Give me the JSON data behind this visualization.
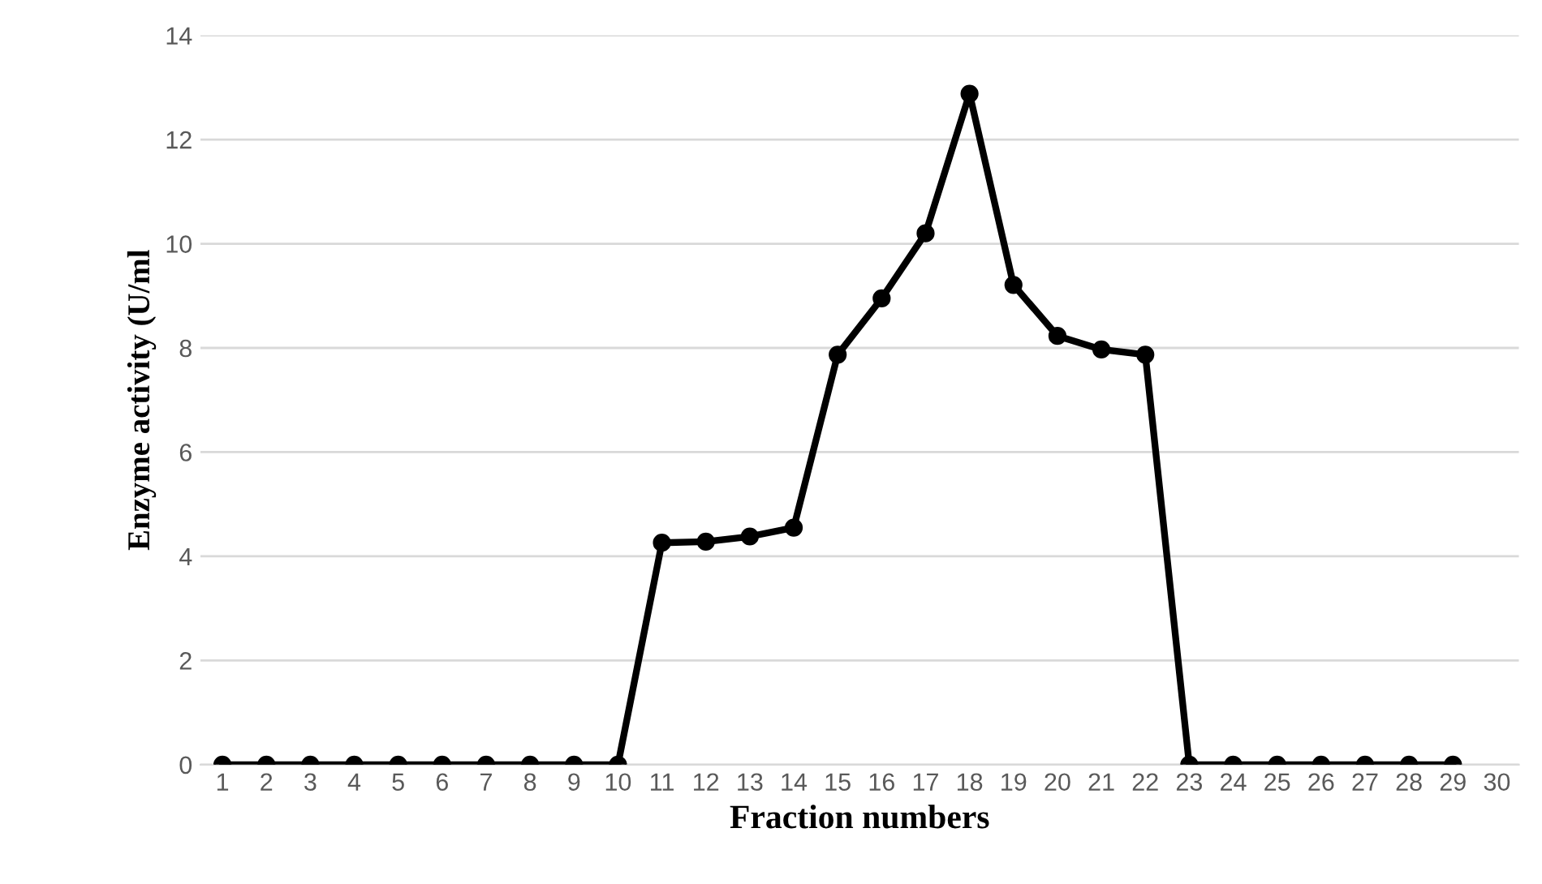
{
  "chart_data": {
    "type": "line",
    "xlabel": "Fraction numbers",
    "ylabel": "Enzyme activity (U/ml",
    "categories": [
      "1",
      "2",
      "3",
      "4",
      "5",
      "6",
      "7",
      "8",
      "9",
      "10",
      "11",
      "12",
      "13",
      "14",
      "15",
      "16",
      "17",
      "18",
      "19",
      "20",
      "21",
      "22",
      "23",
      "24",
      "25",
      "26",
      "27",
      "28",
      "29",
      "30"
    ],
    "series": [
      {
        "color": "#000000",
        "values": [
          0,
          0,
          0,
          0,
          0,
          0,
          0,
          0,
          0,
          0,
          4.26,
          4.28,
          4.38,
          4.55,
          7.87,
          8.95,
          10.2,
          12.88,
          9.21,
          8.23,
          7.97,
          7.87,
          0,
          0,
          0,
          0,
          0,
          0,
          0,
          null
        ]
      }
    ],
    "ylim": [
      0,
      14
    ],
    "yticks": [
      0,
      2,
      4,
      6,
      8,
      10,
      12,
      14
    ],
    "grid": "y",
    "marker": "circle",
    "line_style": "solid"
  }
}
